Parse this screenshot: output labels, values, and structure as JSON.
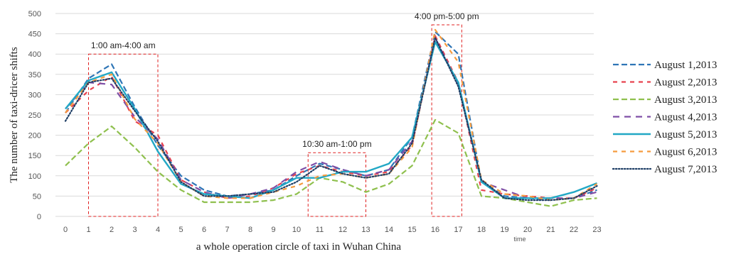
{
  "chart_data": {
    "type": "line",
    "title": "",
    "xlabel": "a whole operation circle of taxi in Wuhan China",
    "xlabel_secondary": "time",
    "ylabel": "The number of taxi-dricer shifts",
    "x": [
      0,
      1,
      2,
      3,
      4,
      5,
      6,
      7,
      8,
      9,
      10,
      11,
      12,
      13,
      14,
      15,
      16,
      17,
      18,
      19,
      20,
      21,
      22,
      23
    ],
    "ylim": [
      0,
      500
    ],
    "yticks": [
      0,
      50,
      100,
      150,
      200,
      250,
      300,
      350,
      400,
      450,
      500
    ],
    "grid": true,
    "legend_position": "right",
    "series": [
      {
        "name": "August 1,2013",
        "color": "#2e75b6",
        "dash": "long",
        "values": [
          255,
          340,
          375,
          270,
          175,
          100,
          65,
          50,
          55,
          65,
          100,
          130,
          115,
          100,
          115,
          195,
          455,
          400,
          85,
          50,
          45,
          40,
          45,
          65
        ]
      },
      {
        "name": "August 2,2013",
        "color": "#e8434f",
        "dash": "medium",
        "values": [
          255,
          310,
          345,
          235,
          200,
          90,
          60,
          45,
          50,
          70,
          105,
          125,
          110,
          100,
          110,
          175,
          445,
          330,
          65,
          55,
          50,
          45,
          45,
          70
        ]
      },
      {
        "name": "August 3,2013",
        "color": "#8fc04e",
        "dash": "long",
        "values": [
          125,
          180,
          222,
          170,
          110,
          65,
          35,
          35,
          35,
          40,
          55,
          95,
          85,
          60,
          80,
          125,
          238,
          205,
          50,
          45,
          35,
          25,
          40,
          45
        ]
      },
      {
        "name": "August 4,2013",
        "color": "#7f4fa6",
        "dash": "longgap",
        "values": [
          265,
          330,
          325,
          245,
          190,
          90,
          60,
          45,
          55,
          70,
          110,
          135,
          115,
          100,
          115,
          185,
          440,
          325,
          85,
          65,
          45,
          45,
          45,
          60
        ]
      },
      {
        "name": "August 5,2013",
        "color": "#22a8c5",
        "dash": "solid",
        "values": [
          265,
          335,
          355,
          265,
          160,
          80,
          55,
          50,
          45,
          65,
          95,
          95,
          110,
          110,
          130,
          195,
          430,
          330,
          85,
          45,
          45,
          45,
          60,
          82
        ]
      },
      {
        "name": "August 6,2013",
        "color": "#f59b3e",
        "dash": "medium",
        "values": [
          255,
          330,
          350,
          240,
          180,
          85,
          50,
          45,
          45,
          60,
          75,
          100,
          105,
          95,
          105,
          170,
          460,
          380,
          90,
          55,
          50,
          40,
          45,
          80
        ]
      },
      {
        "name": "August 7,2013",
        "color": "#1f3f66",
        "dash": "dotted",
        "values": [
          235,
          330,
          340,
          260,
          185,
          85,
          50,
          50,
          55,
          60,
          85,
          125,
          105,
          95,
          105,
          180,
          440,
          320,
          90,
          45,
          40,
          40,
          45,
          75
        ]
      }
    ],
    "annotations": [
      {
        "label": "1:00 am-4:00 am",
        "x_start": 1,
        "x_end": 4,
        "y_start": 0,
        "y_end": 400
      },
      {
        "label": "10:30 am-1:00 pm",
        "x_start": 10.5,
        "x_end": 13,
        "y_start": 0,
        "y_end": 157
      },
      {
        "label": "4:00 pm-5:00 pm",
        "x_start": 15.85,
        "x_end": 17.15,
        "y_start": 0,
        "y_end": 472
      }
    ]
  }
}
